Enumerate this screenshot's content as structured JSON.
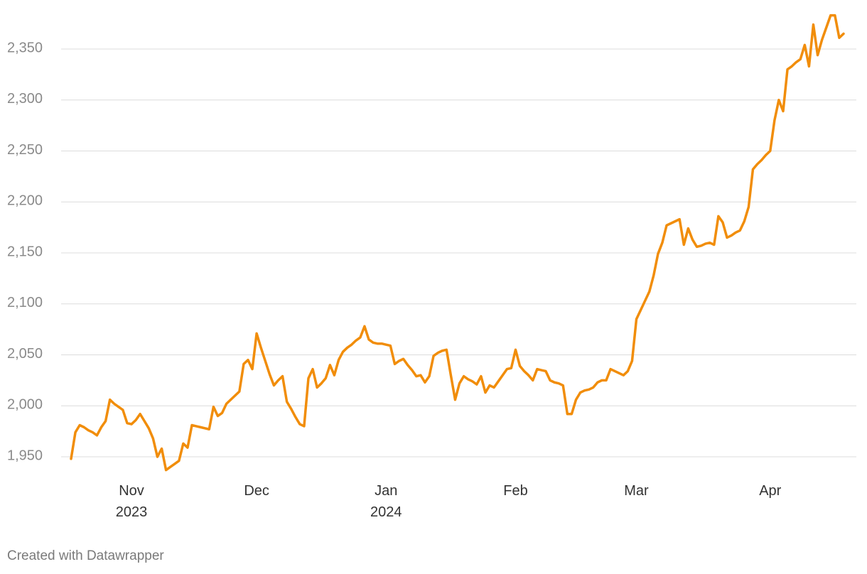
{
  "chart_data": {
    "type": "line",
    "categories": [
      null,
      null,
      null,
      null,
      null,
      null,
      null,
      null,
      null,
      null,
      null,
      null,
      null,
      null,
      "Nov\n2023",
      null,
      null,
      null,
      null,
      null,
      null,
      null,
      null,
      null,
      null,
      null,
      null,
      null,
      null,
      null,
      null,
      null,
      null,
      null,
      null,
      null,
      null,
      null,
      null,
      null,
      null,
      null,
      null,
      "Dec",
      null,
      null,
      null,
      null,
      null,
      null,
      null,
      null,
      null,
      null,
      null,
      null,
      null,
      null,
      null,
      null,
      null,
      null,
      null,
      null,
      null,
      null,
      null,
      null,
      null,
      null,
      null,
      null,
      null,
      "Jan\n2024",
      null,
      null,
      null,
      null,
      null,
      null,
      null,
      null,
      null,
      null,
      null,
      null,
      null,
      null,
      null,
      null,
      null,
      null,
      null,
      null,
      null,
      null,
      null,
      null,
      null,
      null,
      null,
      null,
      null,
      "Feb",
      null,
      null,
      null,
      null,
      null,
      null,
      null,
      null,
      null,
      null,
      null,
      null,
      null,
      null,
      null,
      null,
      null,
      null,
      null,
      null,
      null,
      null,
      null,
      null,
      null,
      null,
      null,
      "Mar",
      null,
      null,
      null,
      null,
      null,
      null,
      null,
      null,
      null,
      null,
      null,
      null,
      null,
      null,
      null,
      null,
      null,
      null,
      null,
      null,
      null,
      null,
      null,
      null,
      null,
      null,
      null,
      null,
      null,
      null,
      "Apr",
      null,
      null,
      null,
      null,
      null,
      null,
      null,
      null,
      null,
      null,
      null,
      null,
      null,
      null,
      null,
      null,
      null
    ],
    "values": [
      1948,
      1974,
      1981,
      1979,
      1976,
      1974,
      1971,
      1979,
      1985,
      2006,
      2002,
      1999,
      1996,
      1983,
      1982,
      1986,
      1992,
      1985,
      1978,
      1968,
      1950,
      1958,
      1937,
      1940,
      1943,
      1946,
      1963,
      1959,
      1981,
      1980,
      1979,
      1978,
      1977,
      1999,
      1990,
      1993,
      2002,
      2006,
      2010,
      2014,
      2041,
      2045,
      2036,
      2071,
      2057,
      2044,
      2031,
      2020,
      2025,
      2029,
      2004,
      1997,
      1989,
      1982,
      1980,
      2027,
      2036,
      2018,
      2022,
      2027,
      2040,
      2030,
      2045,
      2053,
      2057,
      2060,
      2064,
      2067,
      2078,
      2065,
      2062,
      2061,
      2061,
      2060,
      2059,
      2041,
      2044,
      2046,
      2040,
      2035,
      2029,
      2030,
      2023,
      2029,
      2049,
      2052,
      2054,
      2055,
      2030,
      2006,
      2022,
      2029,
      2026,
      2024,
      2021,
      2029,
      2013,
      2020,
      2018,
      2024,
      2030,
      2036,
      2037,
      2055,
      2039,
      2034,
      2030,
      2025,
      2036,
      2035,
      2034,
      2025,
      2023,
      2022,
      2020,
      1992,
      1992,
      2006,
      2013,
      2015,
      2016,
      2018,
      2023,
      2025,
      2025,
      2036,
      2034,
      2032,
      2030,
      2034,
      2044,
      2085,
      2094,
      2103,
      2112,
      2128,
      2149,
      2160,
      2177,
      2179,
      2181,
      2183,
      2158,
      2174,
      2163,
      2156,
      2157,
      2159,
      2160,
      2158,
      2186,
      2180,
      2165,
      2167,
      2170,
      2172,
      2181,
      2195,
      2232,
      2237,
      2241,
      2246,
      2250,
      2280,
      2300,
      2289,
      2330,
      2333,
      2337,
      2340,
      2354,
      2333,
      2374,
      2344,
      2359,
      2371,
      2383,
      2383,
      2361,
      2365
    ],
    "color": "#f18d0a",
    "ylim": [
      1930,
      2390
    ],
    "yticks": [
      {
        "value": 1950,
        "label": "1,950"
      },
      {
        "value": 2000,
        "label": "2,000"
      },
      {
        "value": 2050,
        "label": "2,050"
      },
      {
        "value": 2100,
        "label": "2,100"
      },
      {
        "value": 2150,
        "label": "2,150"
      },
      {
        "value": 2200,
        "label": "2,200"
      },
      {
        "value": 2250,
        "label": "2,250"
      },
      {
        "value": 2300,
        "label": "2,300"
      },
      {
        "value": 2350,
        "label": "2,350"
      }
    ],
    "grid": true,
    "credit": "Created with Datawrapper"
  }
}
